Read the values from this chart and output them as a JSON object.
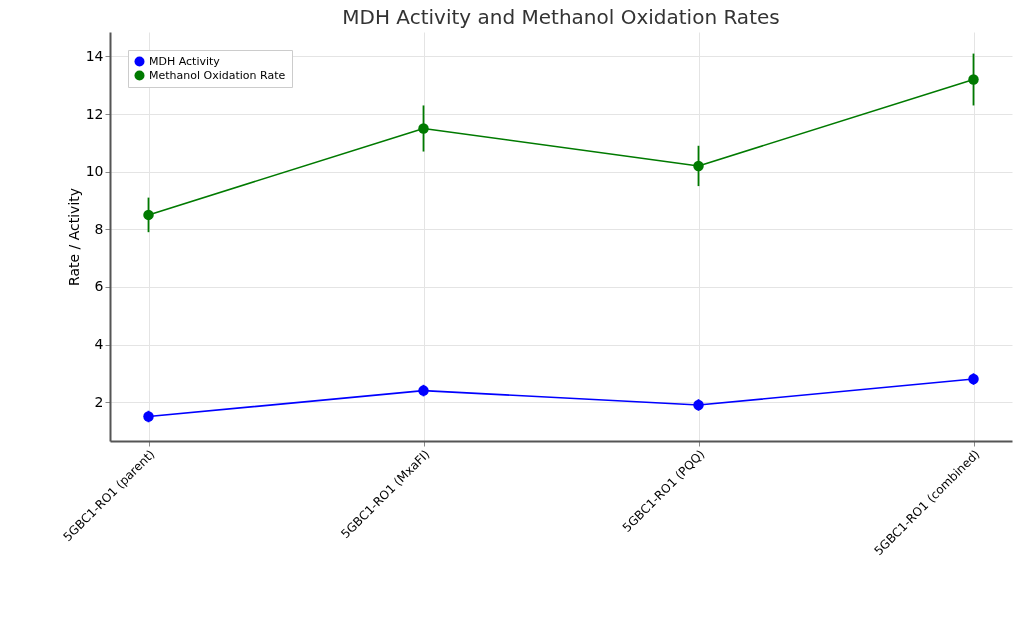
{
  "chart_data": {
    "type": "line",
    "title": "MDH Activity and Methanol Oxidation Rates",
    "ylabel": "Rate / Activity",
    "categories": [
      "5GBC1-RO1 (parent)",
      "5GBC1-RO1 (MxaFI)",
      "5GBC1-RO1 (PQQ)",
      "5GBC1-RO1 (combined)"
    ],
    "series": [
      {
        "name": "MDH Activity",
        "color": "#0000ff",
        "values": [
          1.5,
          2.4,
          1.9,
          2.8
        ],
        "errors": [
          0.2,
          0.2,
          0.2,
          0.2
        ]
      },
      {
        "name": "Methanol Oxidation Rate",
        "color": "#007a00",
        "values": [
          8.5,
          11.5,
          10.2,
          13.2
        ],
        "errors": [
          0.6,
          0.8,
          0.7,
          0.9
        ]
      }
    ],
    "ylim": [
      0.65,
      14.85
    ],
    "yticks": [
      2,
      4,
      6,
      8,
      10,
      12,
      14
    ],
    "grid": true,
    "legend": "top left",
    "marker": "circle"
  }
}
